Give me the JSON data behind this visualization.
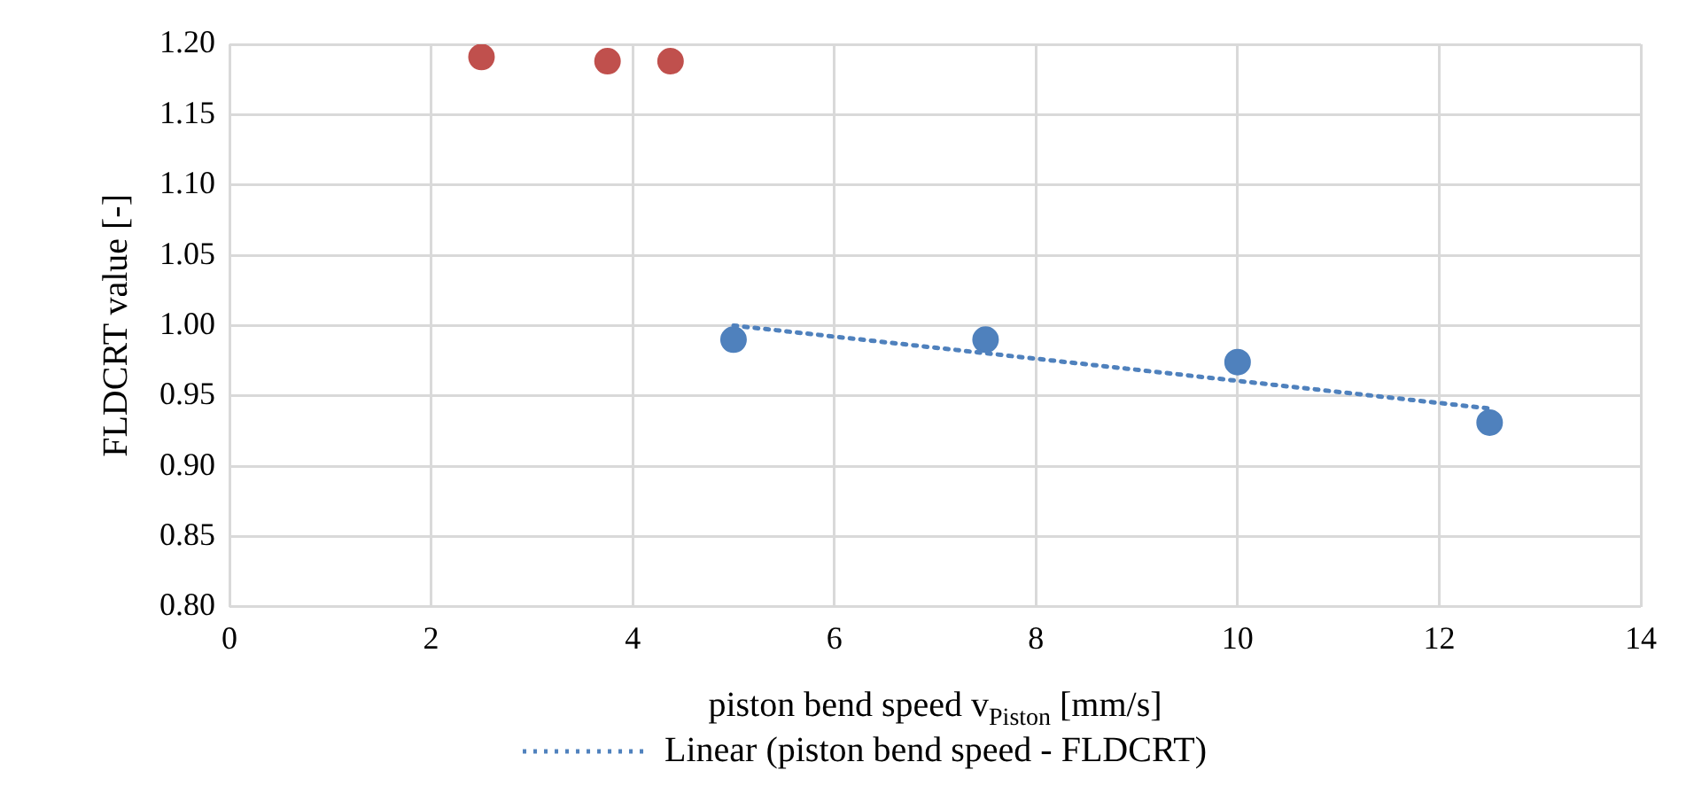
{
  "chart_data": {
    "type": "scatter",
    "xlabel": "piston bend speed v$_{Piston}$ [mm/s]",
    "ylabel": "FLDCRT value [-]",
    "series": [
      {
        "type": "scatter",
        "color": "#c0504d",
        "x": [
          2.5,
          3.75,
          4.375
        ],
        "values": [
          1.191,
          1.188,
          1.188
        ]
      },
      {
        "type": "scatter",
        "color": "#4f81bd",
        "x": [
          5,
          7.5,
          10,
          12.5
        ],
        "values": [
          0.99,
          0.99,
          0.974,
          0.931
        ]
      },
      {
        "type": "line",
        "name": "Linear (piston bend speed - FLDCRT)",
        "color": "#4f81bd",
        "x": [
          5,
          12.5
        ],
        "values": [
          1.0,
          0.941
        ],
        "line_style": "dotted",
        "marker": "none"
      }
    ],
    "xlim": [
      0,
      14
    ],
    "xticks": [
      0,
      2,
      4,
      6,
      8,
      10,
      12,
      14
    ],
    "ylim": [
      0.8,
      1.2
    ],
    "yticks": [
      {
        "value": 0.8,
        "label": "0.80"
      },
      {
        "value": 0.85,
        "label": "0.85"
      },
      {
        "value": 0.9,
        "label": "0.90"
      },
      {
        "value": 0.95,
        "label": "0.95"
      },
      {
        "value": 1.0,
        "label": "1.00"
      },
      {
        "value": 1.05,
        "label": "1.05"
      },
      {
        "value": 1.1,
        "label": "1.10"
      },
      {
        "value": 1.15,
        "label": "1.15"
      },
      {
        "value": 1.2,
        "label": "1.20"
      }
    ],
    "grid": true,
    "legend": "bottom",
    "marker": "circle"
  }
}
